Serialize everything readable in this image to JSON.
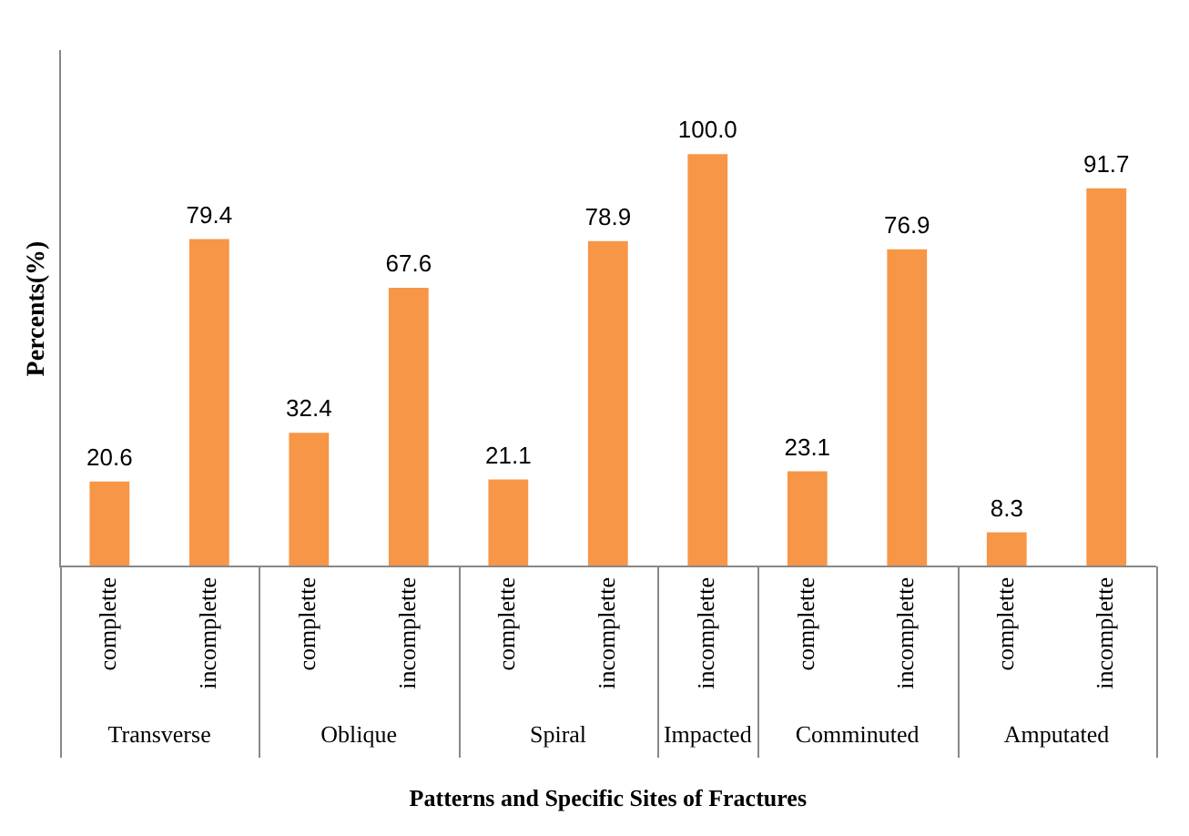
{
  "chart_data": {
    "type": "bar",
    "xlabel": "Patterns and Specific Sites of Fractures",
    "ylabel": "Percents(%)",
    "categories": [
      "complette",
      "incomplette",
      "complette",
      "incomplette",
      "complette",
      "incomplette",
      "incomplette",
      "complette",
      "incomplette",
      "complette",
      "incomplette"
    ],
    "values": [
      20.6,
      79.4,
      32.4,
      67.6,
      21.1,
      78.9,
      100.0,
      23.1,
      76.9,
      8.3,
      91.7
    ],
    "value_labels": [
      "20.6",
      "79.4",
      "32.4",
      "67.6",
      "21.1",
      "78.9",
      "100.0",
      "23.1",
      "76.9",
      "8.3",
      "91.7"
    ],
    "color": "#f79646",
    "ylim": [
      0,
      125
    ],
    "tick_labels": "x",
    "grid": false,
    "legend": false,
    "annotations": [
      "Transverse",
      "Oblique",
      "Spiral",
      "Impacted",
      "Comminuted",
      "Amputated"
    ]
  }
}
